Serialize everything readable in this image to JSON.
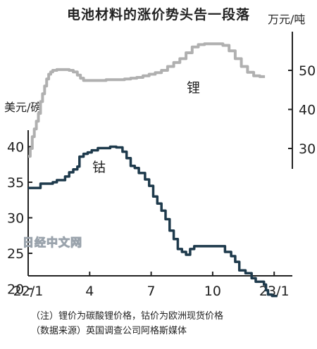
{
  "title": "电池材料的涨价势头告一段落",
  "notes": [
    "（注）锂价为碳酸锂价格，钴价为欧洲现货价格",
    "（数据来源）英国调查公司阿格斯媒体"
  ],
  "watermark": "日经中文网",
  "colors": {
    "lithium": "#b0b0b0",
    "cobalt": "#1e3a4c"
  },
  "chart_data": {
    "type": "line",
    "x_ticks": [
      "22/1",
      "4",
      "7",
      "10",
      "23/1"
    ],
    "left_axis": {
      "unit": "美元/磅",
      "ticks": [
        20,
        25,
        30,
        35,
        40
      ],
      "range": [
        18,
        42
      ]
    },
    "right_axis": {
      "unit": "万元/吨",
      "ticks": [
        30,
        40,
        50
      ],
      "range": [
        26,
        59
      ]
    },
    "series": [
      {
        "name": "锂",
        "axis": "right",
        "x": [
          "22/1",
          "4",
          "7",
          "10",
          "23/1"
        ],
        "points": [
          [
            0.0,
            28
          ],
          [
            0.1,
            30
          ],
          [
            0.2,
            33
          ],
          [
            0.3,
            35
          ],
          [
            0.4,
            37
          ],
          [
            0.5,
            39
          ],
          [
            0.6,
            42
          ],
          [
            0.7,
            44
          ],
          [
            0.8,
            46
          ],
          [
            0.9,
            47.8
          ],
          [
            1.0,
            49
          ],
          [
            1.1,
            49.6
          ],
          [
            1.2,
            50
          ],
          [
            1.4,
            50.2
          ],
          [
            1.6,
            50.2
          ],
          [
            1.8,
            50.2
          ],
          [
            2.0,
            50
          ],
          [
            2.2,
            49.6
          ],
          [
            2.4,
            48.8
          ],
          [
            2.55,
            48
          ],
          [
            2.7,
            47.4
          ],
          [
            2.9,
            47.4
          ],
          [
            3.2,
            47.4
          ],
          [
            3.5,
            47.4
          ],
          [
            3.8,
            47.6
          ],
          [
            4.1,
            47.6
          ],
          [
            4.4,
            47.6
          ],
          [
            4.7,
            47.8
          ],
          [
            5.0,
            48
          ],
          [
            5.3,
            48.2
          ],
          [
            5.6,
            48.6
          ],
          [
            5.9,
            49
          ],
          [
            6.2,
            49.4
          ],
          [
            6.5,
            50
          ],
          [
            6.8,
            51
          ],
          [
            7.1,
            52
          ],
          [
            7.4,
            53
          ],
          [
            7.7,
            54.5
          ],
          [
            8.0,
            56
          ],
          [
            8.3,
            56.6
          ],
          [
            8.6,
            56.8
          ],
          [
            8.9,
            56.8
          ],
          [
            9.2,
            56.8
          ],
          [
            9.5,
            56.4
          ],
          [
            9.8,
            55
          ],
          [
            10.1,
            53
          ],
          [
            10.4,
            51
          ],
          [
            10.7,
            49.5
          ],
          [
            11.0,
            48.6
          ],
          [
            11.3,
            48.4
          ],
          [
            11.55,
            48.4
          ]
        ]
      },
      {
        "name": "钴",
        "axis": "left",
        "x": [
          "22/1",
          "4",
          "7",
          "10",
          "23/1"
        ],
        "points": [
          [
            0.0,
            34.2
          ],
          [
            0.2,
            34.2
          ],
          [
            0.4,
            34.2
          ],
          [
            0.6,
            34.8
          ],
          [
            0.8,
            34.8
          ],
          [
            1.0,
            34.8
          ],
          [
            1.2,
            35
          ],
          [
            1.4,
            35.3
          ],
          [
            1.6,
            35.3
          ],
          [
            1.8,
            35.8
          ],
          [
            2.0,
            36.4
          ],
          [
            2.2,
            36.8
          ],
          [
            2.4,
            37.2
          ],
          [
            2.5,
            38.6
          ],
          [
            2.7,
            39
          ],
          [
            2.9,
            39.2
          ],
          [
            3.1,
            39.5
          ],
          [
            3.4,
            39.8
          ],
          [
            3.7,
            39.8
          ],
          [
            4.0,
            40
          ],
          [
            4.3,
            39.9
          ],
          [
            4.6,
            39.3
          ],
          [
            4.8,
            38.4
          ],
          [
            5.0,
            37.3
          ],
          [
            5.2,
            37
          ],
          [
            5.4,
            36.3
          ],
          [
            5.7,
            35.4
          ],
          [
            5.9,
            34.5
          ],
          [
            6.1,
            33
          ],
          [
            6.3,
            32
          ],
          [
            6.5,
            31
          ],
          [
            6.7,
            29.8
          ],
          [
            6.9,
            28.2
          ],
          [
            7.1,
            27
          ],
          [
            7.3,
            25.6
          ],
          [
            7.5,
            25.2
          ],
          [
            7.7,
            24.8
          ],
          [
            7.9,
            25.6
          ],
          [
            8.1,
            26
          ],
          [
            8.4,
            26
          ],
          [
            8.7,
            26
          ],
          [
            9.0,
            26
          ],
          [
            9.3,
            26
          ],
          [
            9.6,
            25.2
          ],
          [
            9.9,
            24.6
          ],
          [
            10.1,
            23.8
          ],
          [
            10.3,
            22.6
          ],
          [
            10.6,
            22.2
          ],
          [
            10.9,
            21.5
          ],
          [
            11.1,
            21
          ],
          [
            11.3,
            21
          ],
          [
            11.5,
            20.6
          ],
          [
            11.6,
            19.8
          ],
          [
            11.7,
            19.2
          ],
          [
            11.9,
            19
          ],
          [
            12.1,
            19
          ],
          [
            12.15,
            19
          ]
        ]
      }
    ]
  }
}
